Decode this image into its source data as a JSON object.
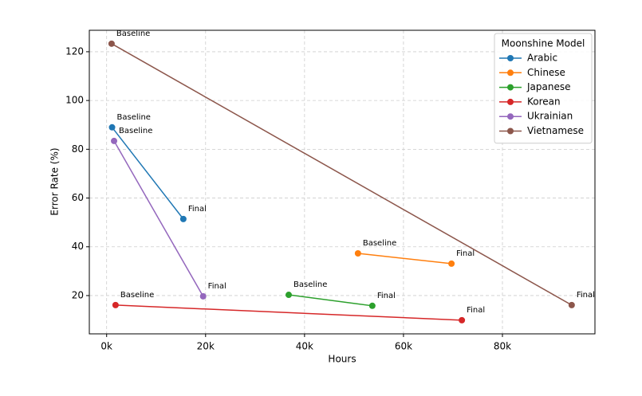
{
  "chart_data": {
    "type": "line",
    "xlabel": "Hours",
    "ylabel": "Error Rate (%)",
    "legend_title": "Moonshine Model",
    "legend": "upper right",
    "grid": true,
    "xlim": [
      -3.5,
      98.7
    ],
    "xticks": [
      {
        "value": 0,
        "label": "0k"
      },
      {
        "value": 20,
        "label": "20k"
      },
      {
        "value": 40,
        "label": "40k"
      },
      {
        "value": 60,
        "label": "60k"
      },
      {
        "value": 80,
        "label": "80k"
      }
    ],
    "ylim": [
      4.3,
      128.8
    ],
    "yticks": [
      20,
      40,
      60,
      80,
      100,
      120
    ],
    "series": [
      {
        "name": "Arabic",
        "color": "#1f77b4",
        "x": [
          1.1,
          15.5
        ],
        "values": [
          89,
          51.4
        ],
        "labels": [
          "Baseline",
          "Final"
        ]
      },
      {
        "name": "Chinese",
        "color": "#ff7f0e",
        "x": [
          50.8,
          69.7
        ],
        "values": [
          37.3,
          33.1
        ],
        "labels": [
          "Baseline",
          "Final"
        ]
      },
      {
        "name": "Japanese",
        "color": "#2ca02c",
        "x": [
          36.8,
          53.7
        ],
        "values": [
          20.3,
          15.8
        ],
        "labels": [
          "Baseline",
          "Final"
        ]
      },
      {
        "name": "Korean",
        "color": "#d62728",
        "x": [
          1.8,
          71.8
        ],
        "values": [
          16.1,
          9.9
        ],
        "labels": [
          "Baseline",
          "Final"
        ]
      },
      {
        "name": "Ukrainian",
        "color": "#9467bd",
        "x": [
          1.5,
          19.5
        ],
        "values": [
          83.4,
          19.7
        ],
        "labels": [
          "Baseline",
          "Final"
        ]
      },
      {
        "name": "Vietnamese",
        "color": "#8c564b",
        "x": [
          1,
          94
        ],
        "values": [
          123.3,
          16.1
        ],
        "labels": [
          "Baseline",
          "Final"
        ]
      }
    ]
  }
}
